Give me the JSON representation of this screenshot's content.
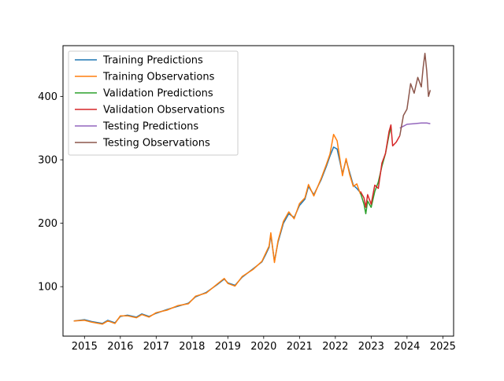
{
  "chart_data": {
    "type": "line",
    "title": "",
    "xlabel": "",
    "ylabel": "",
    "xlim": [
      2014.4,
      2025.3
    ],
    "ylim": [
      22,
      480
    ],
    "x_ticks": [
      2015,
      2016,
      2017,
      2018,
      2019,
      2020,
      2021,
      2022,
      2023,
      2024,
      2025
    ],
    "x_tick_labels": [
      "2015",
      "2016",
      "2017",
      "2018",
      "2019",
      "2020",
      "2021",
      "2022",
      "2023",
      "2024",
      "2025"
    ],
    "y_ticks": [
      100,
      200,
      300,
      400
    ],
    "y_tick_labels": [
      "100",
      "200",
      "300",
      "400"
    ],
    "grid": false,
    "legend_position": "upper-left",
    "series": [
      {
        "name": "Training Predictions",
        "color": "#1f77b4",
        "x": [
          2014.7,
          2015.0,
          2015.2,
          2015.5,
          2015.65,
          2015.85,
          2016.0,
          2016.2,
          2016.45,
          2016.6,
          2016.8,
          2017.0,
          2017.3,
          2017.6,
          2017.9,
          2018.1,
          2018.4,
          2018.7,
          2018.9,
          2019.0,
          2019.2,
          2019.4,
          2019.7,
          2019.95,
          2020.05,
          2020.15,
          2020.2,
          2020.3,
          2020.4,
          2020.55,
          2020.7,
          2020.85,
          2021.0,
          2021.15,
          2021.25,
          2021.4,
          2021.6,
          2021.75,
          2021.85,
          2021.95,
          2022.05,
          2022.2,
          2022.3,
          2022.4,
          2022.5,
          2022.6,
          2022.7
        ],
        "y": [
          46,
          48,
          45,
          42,
          47,
          43,
          53,
          55,
          52,
          57,
          53,
          58,
          64,
          69,
          74,
          84,
          91,
          103,
          112,
          106,
          102,
          115,
          128,
          139,
          150,
          162,
          182,
          140,
          170,
          200,
          215,
          209,
          228,
          238,
          258,
          245,
          268,
          290,
          306,
          320,
          317,
          278,
          300,
          280,
          260,
          255,
          248
        ]
      },
      {
        "name": "Training Observations",
        "color": "#ff7f0e",
        "x": [
          2014.7,
          2015.0,
          2015.2,
          2015.5,
          2015.65,
          2015.85,
          2016.0,
          2016.2,
          2016.45,
          2016.6,
          2016.8,
          2017.0,
          2017.3,
          2017.6,
          2017.9,
          2018.1,
          2018.4,
          2018.7,
          2018.9,
          2019.0,
          2019.2,
          2019.4,
          2019.7,
          2019.95,
          2020.05,
          2020.15,
          2020.2,
          2020.3,
          2020.4,
          2020.55,
          2020.7,
          2020.85,
          2021.0,
          2021.15,
          2021.25,
          2021.4,
          2021.6,
          2021.75,
          2021.85,
          2021.95,
          2022.05,
          2022.2,
          2022.3,
          2022.4,
          2022.5,
          2022.6,
          2022.7
        ],
        "y": [
          46,
          47,
          44,
          41,
          46,
          42,
          54,
          54,
          51,
          56,
          52,
          59,
          63,
          70,
          73,
          85,
          90,
          104,
          113,
          105,
          101,
          116,
          127,
          140,
          152,
          164,
          185,
          138,
          172,
          203,
          218,
          207,
          231,
          240,
          261,
          243,
          270,
          293,
          309,
          340,
          330,
          275,
          302,
          277,
          258,
          262,
          246
        ]
      },
      {
        "name": "Validation Predictions",
        "color": "#2ca02c",
        "x": [
          2022.7,
          2022.8,
          2022.85,
          2022.9,
          2023.0,
          2023.1,
          2023.2,
          2023.3,
          2023.4,
          2023.5,
          2023.55
        ],
        "y": [
          248,
          230,
          215,
          235,
          225,
          250,
          265,
          290,
          310,
          340,
          350
        ]
      },
      {
        "name": "Validation Observations",
        "color": "#d62728",
        "x": [
          2022.7,
          2022.8,
          2022.85,
          2022.9,
          2023.0,
          2023.1,
          2023.2,
          2023.3,
          2023.4,
          2023.5,
          2023.55,
          2023.6,
          2023.7,
          2023.8
        ],
        "y": [
          250,
          240,
          225,
          245,
          230,
          260,
          255,
          295,
          310,
          345,
          355,
          322,
          328,
          338
        ]
      },
      {
        "name": "Testing Predictions",
        "color": "#9467bd",
        "x": [
          2023.8,
          2023.9,
          2024.0,
          2024.2,
          2024.4,
          2024.55,
          2024.65
        ],
        "y": [
          350,
          353,
          356,
          357,
          358,
          358,
          357
        ]
      },
      {
        "name": "Testing Observations",
        "color": "#8c564b",
        "x": [
          2023.8,
          2023.9,
          2024.0,
          2024.1,
          2024.2,
          2024.3,
          2024.4,
          2024.45,
          2024.5,
          2024.55,
          2024.6,
          2024.65
        ],
        "y": [
          338,
          370,
          380,
          420,
          405,
          430,
          415,
          445,
          468,
          440,
          400,
          410
        ]
      }
    ]
  }
}
